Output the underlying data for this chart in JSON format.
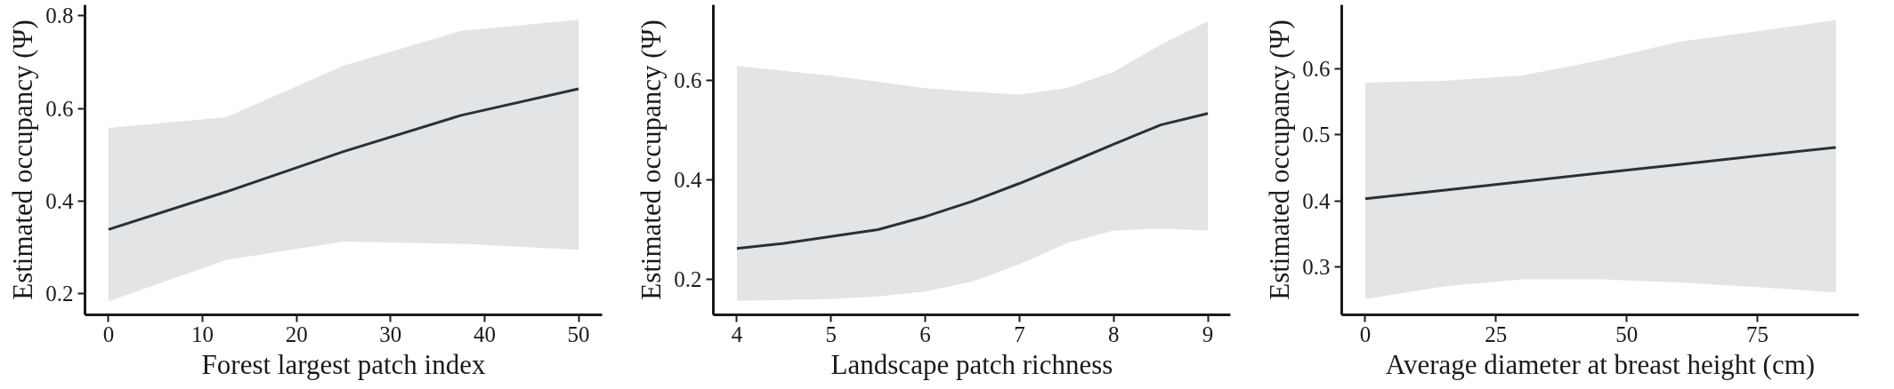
{
  "chart_data": [
    {
      "type": "line",
      "xlabel": "Forest largest patch index",
      "ylabel": "Estimated occupancy (Ψ)",
      "xlim": [
        -2.5,
        52.5
      ],
      "ylim": [
        0.155,
        0.823
      ],
      "xticks": [
        0,
        10,
        20,
        30,
        40,
        50
      ],
      "yticks": [
        0.2,
        0.4,
        0.6,
        0.8
      ],
      "grid": false,
      "series": [
        {
          "color": "#263238",
          "x": [
            0,
            12.5,
            25,
            37.5,
            50
          ],
          "values": [
            0.339,
            0.42,
            0.507,
            0.585,
            0.642
          ],
          "lower": [
            0.184,
            0.273,
            0.313,
            0.308,
            0.295
          ],
          "upper": [
            0.558,
            0.581,
            0.692,
            0.767,
            0.791
          ]
        }
      ]
    },
    {
      "type": "line",
      "xlabel": "Landscape patch richness",
      "ylabel": "Estimated occupancy (Ψ)",
      "xlim": [
        3.75,
        9.24
      ],
      "ylim": [
        0.128,
        0.753
      ],
      "xticks": [
        4,
        5,
        6,
        7,
        8,
        9
      ],
      "yticks": [
        0.2,
        0.4,
        0.6
      ],
      "grid": false,
      "series": [
        {
          "color": "#263238",
          "x": [
            4,
            4.5,
            5,
            5.5,
            6,
            6.5,
            7,
            7.5,
            8,
            8.5,
            9
          ],
          "values": [
            0.262,
            0.272,
            0.286,
            0.3,
            0.326,
            0.357,
            0.393,
            0.432,
            0.472,
            0.511,
            0.534
          ],
          "lower": [
            0.156,
            0.158,
            0.16,
            0.165,
            0.175,
            0.195,
            0.23,
            0.272,
            0.298,
            0.302,
            0.298
          ],
          "upper": [
            0.63,
            0.62,
            0.61,
            0.598,
            0.585,
            0.578,
            0.572,
            0.585,
            0.618,
            0.673,
            0.72
          ]
        }
      ]
    },
    {
      "type": "line",
      "xlabel": "Average diameter at breast height (cm)",
      "ylabel": "Estimated occupancy (Ψ)",
      "xlim": [
        -4.5,
        94.4
      ],
      "ylim": [
        0.227,
        0.697
      ],
      "xticks": [
        0,
        25,
        50,
        75
      ],
      "yticks": [
        0.3,
        0.4,
        0.5,
        0.6
      ],
      "grid": false,
      "series": [
        {
          "color": "#263238",
          "x": [
            0,
            15,
            30,
            45,
            60,
            75,
            90
          ],
          "values": [
            0.403,
            0.416,
            0.429,
            0.442,
            0.455,
            0.468,
            0.481
          ],
          "lower": [
            0.251,
            0.27,
            0.281,
            0.281,
            0.276,
            0.269,
            0.261
          ],
          "upper": [
            0.579,
            0.582,
            0.59,
            0.613,
            0.641,
            0.657,
            0.674
          ]
        }
      ]
    }
  ]
}
